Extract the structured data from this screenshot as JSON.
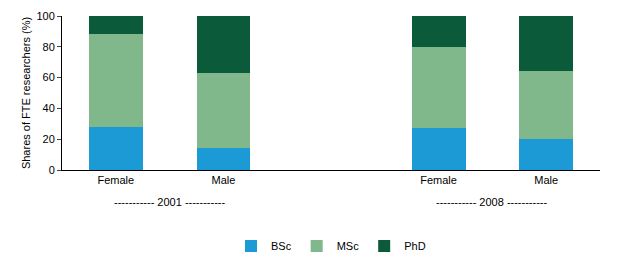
{
  "chart_data": {
    "type": "bar",
    "stacked": true,
    "y_label": "Shares of FTE researchers (%)",
    "categories": [
      "Female",
      "Male",
      null,
      "Female",
      "Male"
    ],
    "annotations": [
      "----------- 2001 -----------",
      "----------- 2008 -----------"
    ],
    "series": [
      {
        "name": "BSc",
        "color": "#1b9ad6",
        "values": [
          28,
          14,
          null,
          27,
          20
        ]
      },
      {
        "name": "MSc",
        "color": "#80b78b",
        "values": [
          60,
          49,
          null,
          53,
          44
        ]
      },
      {
        "name": "PhD",
        "color": "#0b5a3a",
        "values": [
          12,
          37,
          null,
          20,
          36
        ]
      }
    ],
    "ylim": [
      0,
      100
    ],
    "yticks": [
      0,
      20,
      40,
      60,
      80,
      100
    ],
    "grid": false,
    "legend": "bottom"
  }
}
